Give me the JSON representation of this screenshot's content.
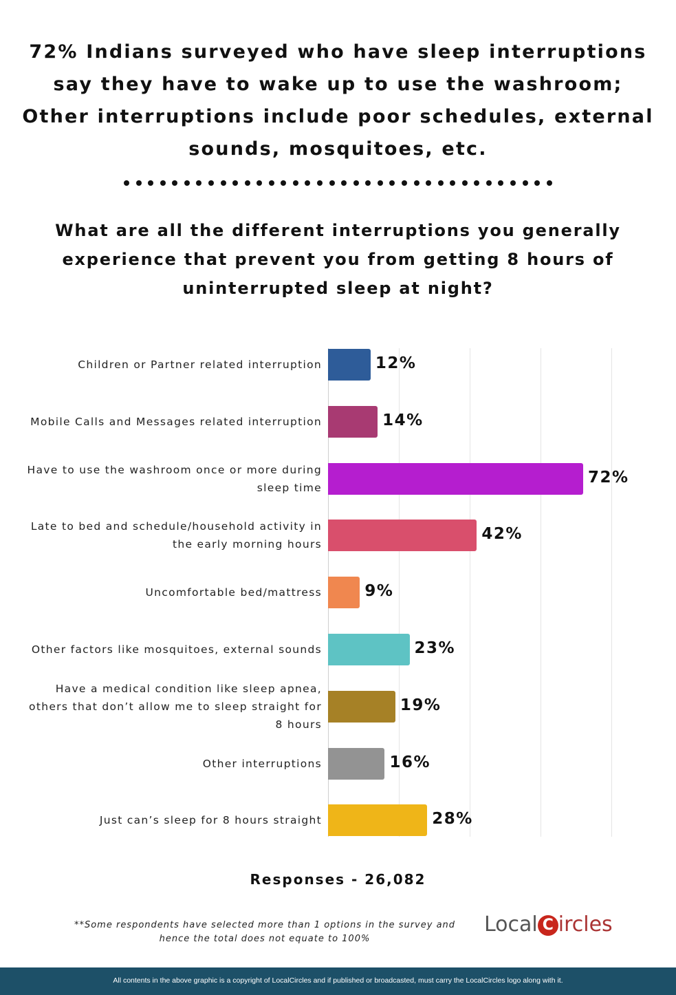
{
  "headline": "72% Indians surveyed who have sleep interruptions say they have to wake up to use the washroom; Other interruptions include poor schedules, external sounds, mosquitoes, etc.",
  "question": "What are all the different interruptions you generally experience that prevent you from getting 8 hours of uninterrupted sleep at night?",
  "responses": "Responses - 26,082",
  "footnote": "**Some respondents have selected more than 1 options in the survey and hence the total does not equate to 100%",
  "logo": {
    "part1": "Local",
    "c": "C",
    "part2": "ircles"
  },
  "footer": "All contents in the above graphic is a copyright of LocalCircles and if published or broadcasted, must carry the LocalCircles logo along with it.",
  "chart_data": {
    "type": "bar",
    "orientation": "horizontal",
    "xlim": [
      0,
      80
    ],
    "grid": true,
    "categories": [
      "Children or Partner related interruption",
      "Mobile Calls and Messages related interruption",
      "Have to use the washroom once or more during sleep time",
      "Late to bed and schedule/household activity in the early morning hours",
      "Uncomfortable bed/mattress",
      "Other factors like mosquitoes, external sounds",
      "Have a medical condition like sleep apnea, others that don’t allow me to sleep straight for 8 hours",
      "Other interruptions",
      "Just can’s sleep for 8 hours straight"
    ],
    "values": [
      12,
      14,
      72,
      42,
      9,
      23,
      19,
      16,
      28
    ],
    "data_labels": [
      "12%",
      "14%",
      "72%",
      "42%",
      "9%",
      "23%",
      "19%",
      "16%",
      "28%"
    ],
    "colors": [
      "#2e5c99",
      "#a83a72",
      "#b51ecf",
      "#d94f6c",
      "#f0874f",
      "#5ec3c4",
      "#a68126",
      "#939393",
      "#efb518"
    ]
  }
}
